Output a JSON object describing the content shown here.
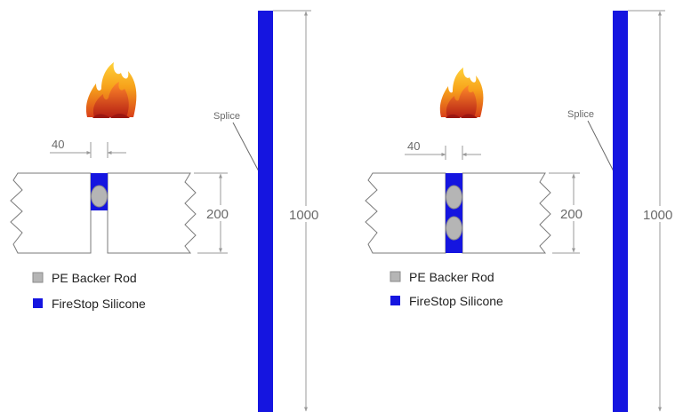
{
  "colors": {
    "silicone": "#1515e0",
    "backer_rod": "#b5b5b5",
    "backer_rod_stroke": "#8a8a8a",
    "outline": "#7a7a7a",
    "dimension": "#9a9a9a"
  },
  "icons": {
    "fire": "flame-icon"
  },
  "panels": [
    {
      "name": "single-rod",
      "gap_dimension": "40",
      "depth_dimension": "200",
      "height_dimension": "1000",
      "splice_label": "Splice",
      "legend": [
        {
          "label": "PE Backer Rod",
          "color": "#b5b5b5"
        },
        {
          "label": "FireStop Silicone",
          "color": "#1515e0"
        }
      ]
    },
    {
      "name": "double-rod",
      "gap_dimension": "40",
      "depth_dimension": "200",
      "height_dimension": "1000",
      "splice_label": "Splice",
      "legend": [
        {
          "label": "PE Backer Rod",
          "color": "#b5b5b5"
        },
        {
          "label": "FireStop Silicone",
          "color": "#1515e0"
        }
      ]
    }
  ]
}
